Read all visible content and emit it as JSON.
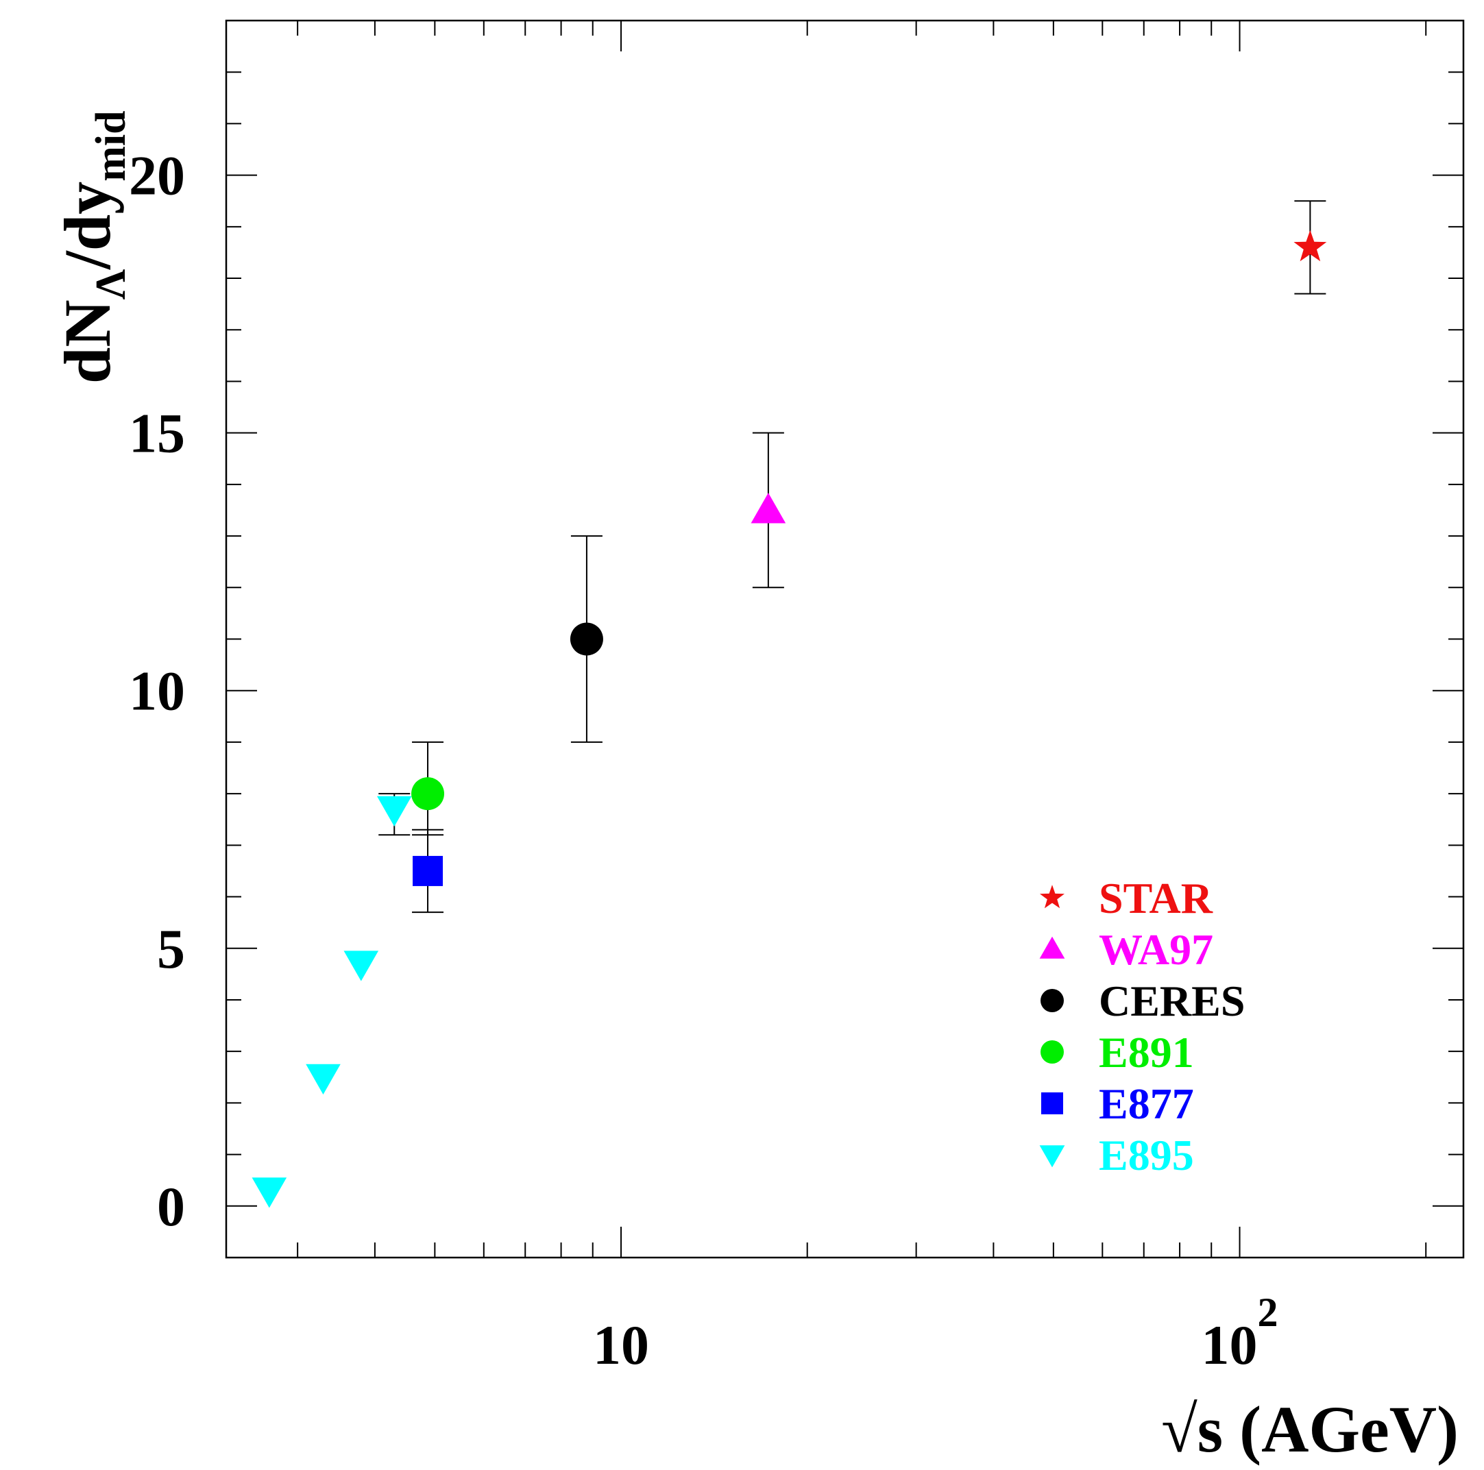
{
  "chart_data": {
    "type": "scatter",
    "xscale": "log",
    "xlim": [
      2.3,
      230
    ],
    "ylim": [
      -1,
      23
    ],
    "xlabel": "√s (AGeV)",
    "ylabel": {
      "main": "dN",
      "subscript": "Λ",
      "middle": "/dy",
      "subscript2": "mid"
    },
    "x_ticklabels": [
      {
        "value": 10,
        "base": "10",
        "exp": ""
      },
      {
        "value": 100,
        "base": "10",
        "exp": "2"
      }
    ],
    "y_ticks": [
      0,
      5,
      10,
      15,
      20
    ],
    "y_ticklabels": [
      "0",
      "5",
      "10",
      "15",
      "20"
    ],
    "legend_position": "lower-right",
    "series": [
      {
        "name": "STAR",
        "color": "#ee1111",
        "marker": "star",
        "points": [
          {
            "x": 130,
            "y": 18.6,
            "ylow": 17.7,
            "yhigh": 19.5
          }
        ]
      },
      {
        "name": "WA97",
        "color": "#ff00ff",
        "marker": "triangle-up",
        "points": [
          {
            "x": 17.3,
            "y": 13.5,
            "ylow": 12.0,
            "yhigh": 15.0
          }
        ]
      },
      {
        "name": "CERES",
        "color": "#000000",
        "marker": "circle",
        "points": [
          {
            "x": 8.8,
            "y": 11.0,
            "ylow": 9.0,
            "yhigh": 13.0
          }
        ]
      },
      {
        "name": "E891",
        "color": "#00ee00",
        "marker": "circle",
        "points": [
          {
            "x": 4.87,
            "y": 8.0,
            "ylow": 7.2,
            "yhigh": 9.0
          }
        ]
      },
      {
        "name": "E877",
        "color": "#0000ff",
        "marker": "square",
        "points": [
          {
            "x": 4.87,
            "y": 6.5,
            "ylow": 5.7,
            "yhigh": 7.3
          }
        ]
      },
      {
        "name": "E895",
        "color": "#00ffff",
        "marker": "triangle-down",
        "points": [
          {
            "x": 2.7,
            "y": 0.3
          },
          {
            "x": 3.3,
            "y": 2.5
          },
          {
            "x": 3.8,
            "y": 4.7
          },
          {
            "x": 4.3,
            "y": 7.7,
            "ylow": 7.2,
            "yhigh": 8.0
          }
        ]
      }
    ]
  }
}
